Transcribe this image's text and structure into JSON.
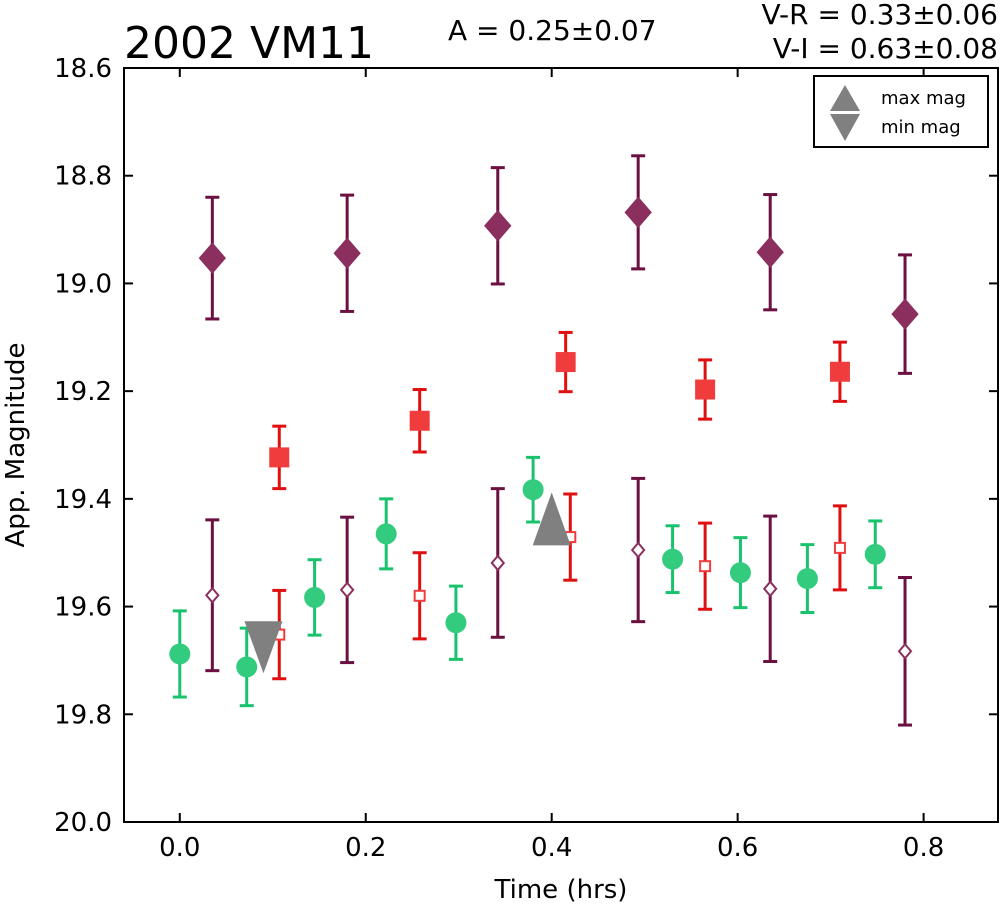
{
  "chart_data": {
    "type": "scatter",
    "title": "2002 VM11",
    "amplitude_text": "A  = 0.25±0.07",
    "color_index_lines": [
      "V-R = 0.33±0.06",
      "V-I  = 0.63±0.08"
    ],
    "xlabel": "Time (hrs)",
    "ylabel": "App. Magnitude",
    "xlim": [
      -0.06,
      0.88
    ],
    "ylim": [
      20.0,
      18.6
    ],
    "y_inverted": true,
    "xticks": [
      "0.0",
      "0.2",
      "0.4",
      "0.6",
      "0.8"
    ],
    "xtick_values": [
      0.0,
      0.2,
      0.4,
      0.6,
      0.8
    ],
    "yticks": [
      "18.6",
      "18.8",
      "19.0",
      "19.2",
      "19.4",
      "19.6",
      "19.8",
      "20.0"
    ],
    "ytick_values": [
      18.6,
      18.8,
      19.0,
      19.2,
      19.4,
      19.6,
      19.8,
      20.0
    ],
    "grid": false,
    "legend": {
      "position": "top-right",
      "entries": [
        {
          "label": "max mag",
          "marker": "triangle-up"
        },
        {
          "label": "min mag",
          "marker": "triangle-down"
        }
      ]
    },
    "series": [
      {
        "marker": "filled-diamond",
        "color": "#8b2f5e",
        "error_color": "#6b1040",
        "x": [
          0.035,
          0.18,
          0.342,
          0.493,
          0.635,
          0.78
        ],
        "y": [
          18.953,
          18.944,
          18.893,
          18.868,
          18.942,
          19.057
        ],
        "err": [
          0.113,
          0.108,
          0.108,
          0.105,
          0.107,
          0.11
        ]
      },
      {
        "marker": "filled-square",
        "color": "#f03c3c",
        "error_color": "#e01010",
        "x": [
          0.107,
          0.258,
          0.415,
          0.565,
          0.71
        ],
        "y": [
          19.323,
          19.255,
          19.146,
          19.197,
          19.164
        ],
        "err": [
          0.058,
          0.058,
          0.055,
          0.055,
          0.055
        ]
      },
      {
        "marker": "filled-circle",
        "color": "#33cc7f",
        "error_color": "#19c26c",
        "x": [
          0.0,
          0.072,
          0.145,
          0.222,
          0.297,
          0.38,
          0.53,
          0.603,
          0.675,
          0.748
        ],
        "y": [
          19.688,
          19.712,
          19.583,
          19.465,
          19.63,
          19.383,
          19.512,
          19.537,
          19.548,
          19.503
        ],
        "err": [
          0.08,
          0.072,
          0.07,
          0.065,
          0.068,
          0.06,
          0.062,
          0.065,
          0.063,
          0.062
        ]
      },
      {
        "marker": "open-diamond",
        "color": "#8b2f5e",
        "error_color": "#6b1040",
        "x": [
          0.035,
          0.18,
          0.342,
          0.493,
          0.635,
          0.78
        ],
        "y": [
          19.579,
          19.569,
          19.519,
          19.495,
          19.567,
          19.683
        ],
        "err": [
          0.14,
          0.135,
          0.138,
          0.133,
          0.135,
          0.137
        ]
      },
      {
        "marker": "open-square",
        "color": "#f03c3c",
        "error_color": "#e01010",
        "x": [
          0.107,
          0.258,
          0.42,
          0.565,
          0.71
        ],
        "y": [
          19.652,
          19.58,
          19.471,
          19.525,
          19.491
        ],
        "err": [
          0.082,
          0.08,
          0.08,
          0.08,
          0.078
        ]
      }
    ],
    "extrema": [
      {
        "type": "max",
        "x": 0.4,
        "y": 19.44,
        "color": "#808080"
      },
      {
        "type": "min",
        "x": 0.09,
        "y": 19.67,
        "color": "#808080"
      }
    ]
  }
}
